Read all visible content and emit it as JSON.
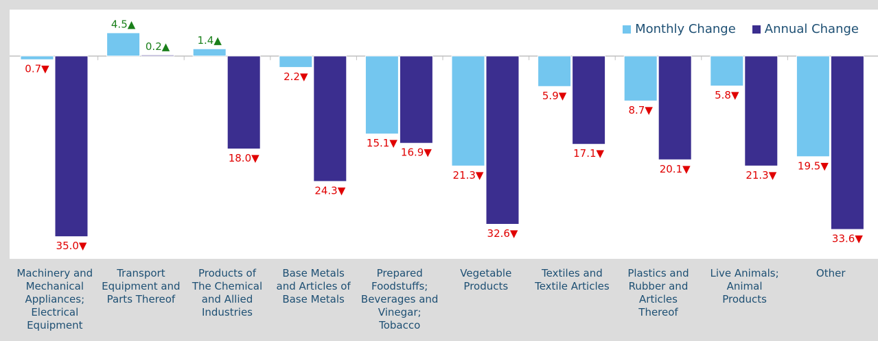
{
  "chart_data": {
    "type": "bar",
    "categories": [
      "Machinery and\nMechanical\nAppliances;\nElectrical\nEquipment",
      "Transport\nEquipment and\nParts Thereof",
      "Products of\nThe Chemical\nand Allied\nIndustries",
      "Base Metals\nand Articles of\nBase Metals",
      "Prepared\nFoodstuffs;\nBeverages and\nVinegar;\nTobacco",
      "Vegetable\nProducts",
      "Textiles and\nTextile Articles",
      "Plastics and\nRubber and\nArticles\nThereof",
      "Live Animals;\nAnimal\nProducts",
      "Other"
    ],
    "series": [
      {
        "name": "Monthly Change",
        "color": "#73c6ef",
        "values": [
          -0.7,
          4.5,
          1.4,
          -2.2,
          -15.1,
          -21.3,
          -5.9,
          -8.7,
          -5.8,
          -19.5
        ],
        "value_labels": [
          "0.7▼",
          "4.5▲",
          "1.4▲",
          "2.2▼",
          "15.1▼",
          "21.3▼",
          "5.9▼",
          "8.7▼",
          "5.8▼",
          "19.5▼"
        ]
      },
      {
        "name": "Annual Change",
        "color": "#3b2e8f",
        "values": [
          -35.0,
          0.2,
          -18.0,
          -24.3,
          -16.9,
          -32.6,
          -17.1,
          -20.1,
          -21.3,
          -33.6
        ],
        "value_labels": [
          "35.0▼",
          "0.2▲",
          "18.0▼",
          "24.3▼",
          "16.9▼",
          "32.6▼",
          "17.1▼",
          "20.1▼",
          "21.3▼",
          "33.6▼"
        ]
      }
    ],
    "ylim": [
      -39.3,
      9
    ],
    "legend": "upper right",
    "up_color": "#1a7f1a",
    "down_color": "#e00000"
  }
}
